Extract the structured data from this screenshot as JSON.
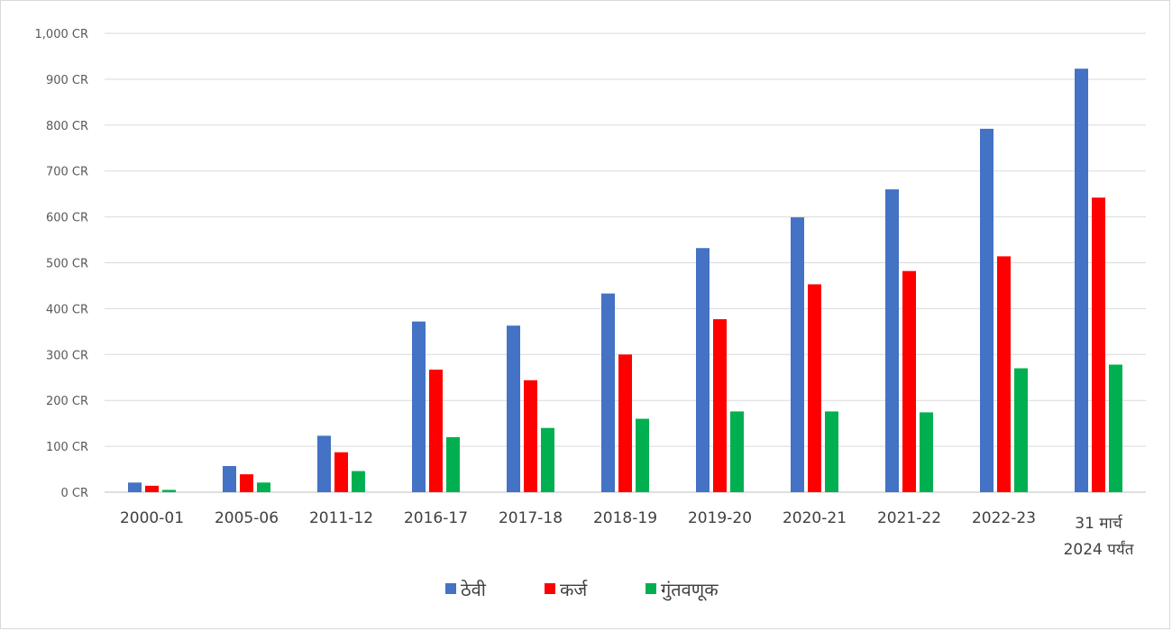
{
  "chart_data": {
    "type": "bar",
    "categories": [
      "2000-01",
      "2005-06",
      "2011-12",
      "2016-17",
      "2017-18",
      "2018-19",
      "2019-20",
      "2020-21",
      "2021-22",
      "2022-23",
      "31 मार्च\n2024 पर्यंत"
    ],
    "series": [
      {
        "name": "ठेवी",
        "color": "#4472c4",
        "values": [
          21,
          57,
          123,
          372,
          363,
          433,
          532,
          599,
          660,
          792,
          923
        ]
      },
      {
        "name": "कर्ज",
        "color": "#ff0000",
        "values": [
          14,
          39,
          87,
          267,
          244,
          300,
          377,
          453,
          482,
          514,
          642
        ]
      },
      {
        "name": "गुंतवणूक",
        "color": "#00b050",
        "values": [
          5,
          21,
          46,
          120,
          140,
          160,
          176,
          176,
          174,
          270,
          278
        ]
      }
    ],
    "y_ticks": [
      "0 CR",
      "100 CR",
      "200 CR",
      "300 CR",
      "400 CR",
      "500 CR",
      "600 CR",
      "700 CR",
      "800 CR",
      "900 CR",
      "1,000 CR"
    ],
    "ylim": [
      0,
      1000
    ],
    "grid": true,
    "legend_position": "bottom",
    "title": "",
    "xlabel": "",
    "ylabel": ""
  }
}
